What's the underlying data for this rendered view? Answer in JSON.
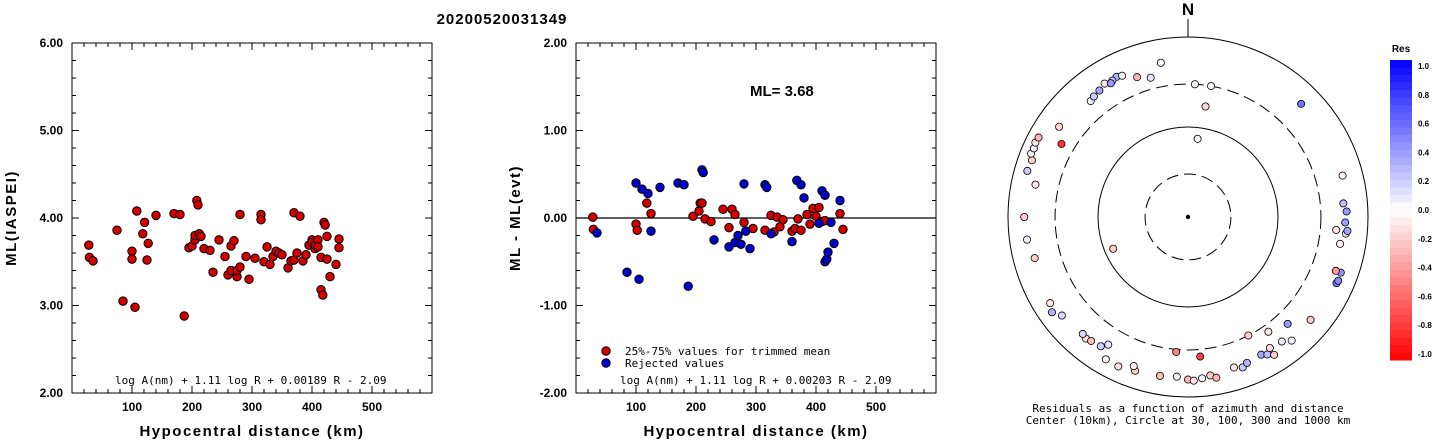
{
  "figure": {
    "title": "20200520031349"
  },
  "chart_data": [
    {
      "type": "scatter",
      "xlabel": "Hypocentral distance (km)",
      "ylabel": "ML(IASPEI)",
      "xlim": [
        0,
        600
      ],
      "ylim": [
        2.0,
        6.0
      ],
      "xticks": [
        "100",
        "200",
        "300",
        "400",
        "500"
      ],
      "yticks": [
        "2.00",
        "3.00",
        "4.00",
        "5.00",
        "6.00"
      ],
      "formula": "log A(nm) + 1.11 log R + 0.00189 R - 2.09",
      "marker_color": "#d40000",
      "points": [
        [
          28,
          3.69
        ],
        [
          29,
          3.55
        ],
        [
          35,
          3.51
        ],
        [
          75,
          3.86
        ],
        [
          85,
          3.05
        ],
        [
          100,
          3.62
        ],
        [
          100,
          3.53
        ],
        [
          105,
          2.98
        ],
        [
          108,
          4.08
        ],
        [
          118,
          3.82
        ],
        [
          121,
          3.95
        ],
        [
          125,
          3.52
        ],
        [
          127,
          3.71
        ],
        [
          140,
          4.03
        ],
        [
          170,
          4.05
        ],
        [
          180,
          4.04
        ],
        [
          187,
          2.88
        ],
        [
          195,
          3.66
        ],
        [
          200,
          3.68
        ],
        [
          205,
          3.75
        ],
        [
          205,
          3.8
        ],
        [
          208,
          4.2
        ],
        [
          210,
          4.15
        ],
        [
          212,
          3.82
        ],
        [
          215,
          3.79
        ],
        [
          220,
          3.65
        ],
        [
          230,
          3.63
        ],
        [
          235,
          3.38
        ],
        [
          245,
          3.75
        ],
        [
          255,
          3.56
        ],
        [
          260,
          3.35
        ],
        [
          265,
          3.4
        ],
        [
          265,
          3.68
        ],
        [
          270,
          3.74
        ],
        [
          275,
          3.33
        ],
        [
          275,
          3.4
        ],
        [
          280,
          4.04
        ],
        [
          280,
          3.44
        ],
        [
          290,
          3.56
        ],
        [
          295,
          3.3
        ],
        [
          305,
          3.54
        ],
        [
          315,
          4.04
        ],
        [
          315,
          3.98
        ],
        [
          320,
          3.5
        ],
        [
          325,
          3.67
        ],
        [
          330,
          3.47
        ],
        [
          335,
          3.56
        ],
        [
          340,
          3.62
        ],
        [
          345,
          3.6
        ],
        [
          350,
          3.58
        ],
        [
          360,
          3.43
        ],
        [
          365,
          3.51
        ],
        [
          370,
          3.52
        ],
        [
          370,
          4.06
        ],
        [
          375,
          3.6
        ],
        [
          380,
          4.02
        ],
        [
          385,
          3.51
        ],
        [
          390,
          3.58
        ],
        [
          395,
          3.69
        ],
        [
          400,
          3.75
        ],
        [
          400,
          3.72
        ],
        [
          405,
          3.65
        ],
        [
          405,
          3.69
        ],
        [
          410,
          3.75
        ],
        [
          410,
          3.67
        ],
        [
          415,
          3.55
        ],
        [
          415,
          3.18
        ],
        [
          418,
          3.12
        ],
        [
          420,
          3.95
        ],
        [
          422,
          3.92
        ],
        [
          425,
          3.53
        ],
        [
          425,
          3.79
        ],
        [
          430,
          3.33
        ],
        [
          440,
          3.47
        ],
        [
          445,
          3.76
        ],
        [
          445,
          3.66
        ]
      ]
    },
    {
      "type": "scatter",
      "xlabel": "Hypocentral distance (km)",
      "ylabel": "ML - ML(evt)",
      "xlim": [
        0,
        600
      ],
      "ylim": [
        -2.0,
        2.0
      ],
      "xticks": [
        "100",
        "200",
        "300",
        "400",
        "500"
      ],
      "yticks": [
        "-2.00",
        "-1.00",
        "0.00",
        "1.00",
        "2.00"
      ],
      "annotation": "ML= 3.68",
      "formula": "log A(nm) + 1.11 log R + 0.00203 R - 2.09",
      "legend": [
        "25%-75% values for trimmed mean",
        "Rejected values"
      ],
      "legend_position": "bottom-left",
      "series": [
        {
          "name": "25%-75% values for trimmed mean",
          "color": "#d40000",
          "points": [
            [
              28,
              0.01
            ],
            [
              29,
              -0.13
            ],
            [
              100,
              -0.07
            ],
            [
              102,
              -0.14
            ],
            [
              118,
              0.17
            ],
            [
              125,
              0.05
            ],
            [
              195,
              0.02
            ],
            [
              205,
              0.08
            ],
            [
              207,
              0.17
            ],
            [
              210,
              0.17
            ],
            [
              215,
              -0.01
            ],
            [
              225,
              -0.04
            ],
            [
              245,
              0.1
            ],
            [
              255,
              -0.11
            ],
            [
              260,
              0.1
            ],
            [
              265,
              0.04
            ],
            [
              280,
              -0.05
            ],
            [
              295,
              -0.12
            ],
            [
              315,
              -0.14
            ],
            [
              325,
              0.03
            ],
            [
              330,
              -0.16
            ],
            [
              335,
              0.01
            ],
            [
              340,
              -0.1
            ],
            [
              345,
              -0.02
            ],
            [
              360,
              -0.15
            ],
            [
              365,
              -0.12
            ],
            [
              370,
              -0.01
            ],
            [
              375,
              -0.14
            ],
            [
              385,
              0.04
            ],
            [
              390,
              -0.07
            ],
            [
              395,
              0.11
            ],
            [
              400,
              0.02
            ],
            [
              405,
              0.12
            ],
            [
              410,
              -0.04
            ],
            [
              415,
              -0.03
            ],
            [
              440,
              0.05
            ],
            [
              445,
              -0.13
            ]
          ]
        },
        {
          "name": "Rejected values",
          "color": "#0000cc",
          "points": [
            [
              35,
              -0.17
            ],
            [
              85,
              -0.62
            ],
            [
              100,
              0.4
            ],
            [
              105,
              -0.7
            ],
            [
              110,
              0.33
            ],
            [
              120,
              0.28
            ],
            [
              125,
              -0.15
            ],
            [
              140,
              0.35
            ],
            [
              170,
              0.4
            ],
            [
              180,
              0.38
            ],
            [
              187,
              -0.78
            ],
            [
              210,
              0.55
            ],
            [
              212,
              0.52
            ],
            [
              230,
              -0.25
            ],
            [
              255,
              -0.33
            ],
            [
              265,
              -0.28
            ],
            [
              270,
              -0.2
            ],
            [
              275,
              -0.3
            ],
            [
              280,
              0.39
            ],
            [
              283,
              -0.15
            ],
            [
              290,
              -0.35
            ],
            [
              315,
              0.38
            ],
            [
              318,
              0.35
            ],
            [
              325,
              -0.18
            ],
            [
              360,
              -0.27
            ],
            [
              368,
              0.43
            ],
            [
              375,
              0.38
            ],
            [
              380,
              0.23
            ],
            [
              405,
              -0.06
            ],
            [
              410,
              0.31
            ],
            [
              415,
              0.26
            ],
            [
              415,
              -0.5
            ],
            [
              418,
              -0.47
            ],
            [
              420,
              -0.39
            ],
            [
              425,
              -0.05
            ],
            [
              430,
              -0.29
            ],
            [
              440,
              0.2
            ]
          ]
        }
      ]
    },
    {
      "type": "polar-scatter",
      "north_label": "N",
      "caption_line1": "Residuals as a function of azimuth and distance",
      "caption_line2": "Center (10km), Circle at 30, 100, 300 and 1000 km",
      "colorbar": {
        "title": "Res",
        "range": [
          -1.0,
          1.0
        ],
        "labels": [
          "1.0",
          "0.8",
          "0.6",
          "0.4",
          "0.2",
          "0.0",
          "-0.2",
          "-0.4",
          "-0.6",
          "-0.8",
          "-1.0"
        ],
        "positive_color": "#0000ff",
        "negative_color": "#ff0000"
      },
      "points_azimuth_deg_distance_km_residual": [
        [
          10,
          300,
          0.01
        ],
        [
          9,
          175,
          -0.15
        ],
        [
          333,
          560,
          0.3
        ],
        [
          331,
          540,
          0.22
        ],
        [
          335,
          540,
          -0.05
        ],
        [
          328,
          560,
          -0.1
        ],
        [
          330,
          520,
          0.4
        ],
        [
          325,
          520,
          0.35
        ],
        [
          3,
          300,
          0.01
        ],
        [
          7,
          75,
          0.02
        ],
        [
          247,
          80,
          -0.2
        ],
        [
          185,
          320,
          -0.5
        ],
        [
          137,
          420,
          0.4
        ],
        [
          114,
          640,
          0.5
        ],
        [
          113,
          650,
          0.45
        ],
        [
          110,
          640,
          0.42
        ],
        [
          100,
          520,
          -0.05
        ],
        [
          96,
          580,
          0.05
        ],
        [
          95,
          600,
          0.35
        ],
        [
          92,
          560,
          0.38
        ],
        [
          88,
          580,
          0.4
        ],
        [
          85,
          540,
          0.25
        ],
        [
          210,
          670,
          -0.05
        ],
        [
          205,
          680,
          -0.1
        ],
        [
          199,
          640,
          -0.2
        ],
        [
          190,
          620,
          -0.25
        ],
        [
          184,
          600,
          -0.05
        ],
        [
          180,
          640,
          -0.3
        ],
        [
          178,
          660,
          -0.1
        ],
        [
          175,
          630,
          0.05
        ],
        [
          172,
          600,
          -0.2
        ],
        [
          170,
          650,
          -0.3
        ],
        [
          163,
          560,
          -0.1
        ],
        [
          160,
          600,
          0.2
        ],
        [
          158,
          560,
          0.3
        ],
        [
          152,
          540,
          0.35
        ],
        [
          150,
          580,
          0.25
        ],
        [
          148,
          520,
          -0.15
        ],
        [
          148,
          640,
          -0.2
        ],
        [
          140,
          620,
          0.05
        ],
        [
          175,
          360,
          -0.75
        ],
        [
          270,
          660,
          -0.2
        ],
        [
          282,
          540,
          -0.1
        ],
        [
          290,
          700,
          -0.2
        ],
        [
          292,
          760,
          -0.05
        ],
        [
          294,
          750,
          0.05
        ],
        [
          296,
          770,
          -0.1
        ],
        [
          298,
          760,
          -0.3
        ],
        [
          286,
          720,
          0.2
        ],
        [
          305,
          560,
          -0.15
        ],
        [
          300,
          420,
          -0.8
        ],
        [
          238,
          640,
          -0.1
        ],
        [
          232,
          600,
          0.15
        ],
        [
          235,
          700,
          0.3
        ],
        [
          220,
          580,
          -0.15
        ],
        [
          222,
          560,
          0.15
        ],
        [
          218,
          560,
          -0.25
        ],
        [
          214,
          540,
          0.2
        ],
        [
          45,
          600,
          0.55
        ],
        [
          143,
          540,
          0.1
        ],
        [
          95,
          450,
          -0.1
        ],
        [
          110,
          560,
          -0.4
        ],
        [
          130,
          600,
          -0.2
        ],
        [
          255,
          580,
          -0.2
        ],
        [
          262,
          640,
          0.05
        ],
        [
          212,
          470,
          0.1
        ],
        [
          200,
          580,
          -0.05
        ],
        [
          75,
          600,
          -0.05
        ],
        [
          145,
          360,
          -0.1
        ],
        [
          153,
          300,
          -0.2
        ],
        [
          320,
          480,
          0.05
        ],
        [
          345,
          400,
          0.1
        ],
        [
          350,
          550,
          0.0
        ],
        [
          322,
          500,
          0.2
        ],
        [
          340,
          450,
          -0.3
        ]
      ]
    }
  ]
}
